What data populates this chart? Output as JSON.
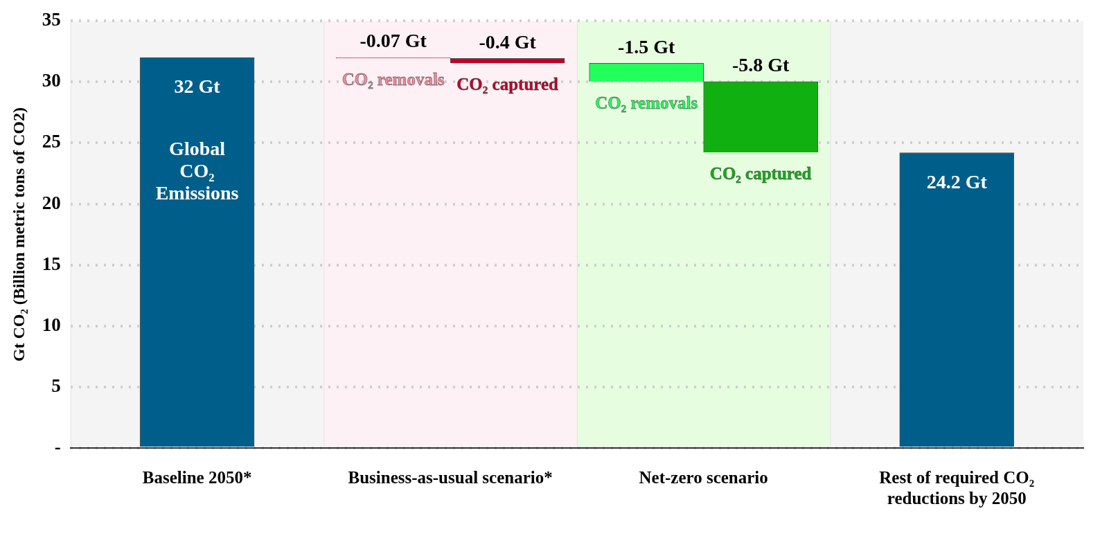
{
  "chart_data": {
    "type": "bar",
    "categories": [
      "Baseline 2050*",
      "Business-as-usual scenario*",
      "Net-zero scenario",
      "Rest of required CO₂ reductions by 2050"
    ],
    "ylabel": "Gt CO₂ (Billion metric tons of CO2)",
    "ylim": [
      0,
      35
    ],
    "yticks": [
      {
        "value": 0,
        "label": "-"
      },
      5,
      10,
      15,
      20,
      25,
      30,
      35
    ],
    "grid": "y",
    "legend": false,
    "series": [
      {
        "color": "#005f8a",
        "values": [
          32,
          null,
          null,
          24.2
        ],
        "value_labels": [
          "32 Gt",
          null,
          null,
          "24.2 Gt"
        ]
      },
      {
        "name": "CO₂ removals",
        "colors": [
          null,
          "#f48aa0",
          "#22ff5a",
          null
        ],
        "values": [
          null,
          -0.07,
          -1.5,
          null
        ],
        "base": [
          null,
          32,
          31.53,
          null
        ],
        "value_labels": [
          null,
          "-0.07 Gt",
          "-1.5 Gt",
          null
        ]
      },
      {
        "name": "CO₂ captured",
        "colors": [
          null,
          "#c0002a",
          "#10b010",
          null
        ],
        "values": [
          null,
          -0.4,
          -5.8,
          null
        ],
        "base": [
          null,
          31.93,
          30.03,
          null
        ],
        "value_labels": [
          null,
          "-0.4 Gt",
          "-5.8 Gt",
          null
        ]
      }
    ],
    "bands": [
      {
        "axis": "x",
        "from": "Baseline 2050*",
        "to": "Baseline 2050*",
        "color": "#f4f4f4"
      },
      {
        "axis": "x",
        "from": "Business-as-usual scenario*",
        "to": "Business-as-usual scenario*",
        "color": "#fdf1f5"
      },
      {
        "axis": "x",
        "from": "Net-zero scenario",
        "to": "Net-zero scenario",
        "color": "#e6fde0"
      },
      {
        "axis": "x",
        "from": "Rest of required CO₂ reductions by 2050",
        "to": "Rest of required CO₂ reductions by 2050",
        "color": "#f4f4f4"
      }
    ],
    "annotations": [
      "Global CO₂ Emissions"
    ]
  }
}
